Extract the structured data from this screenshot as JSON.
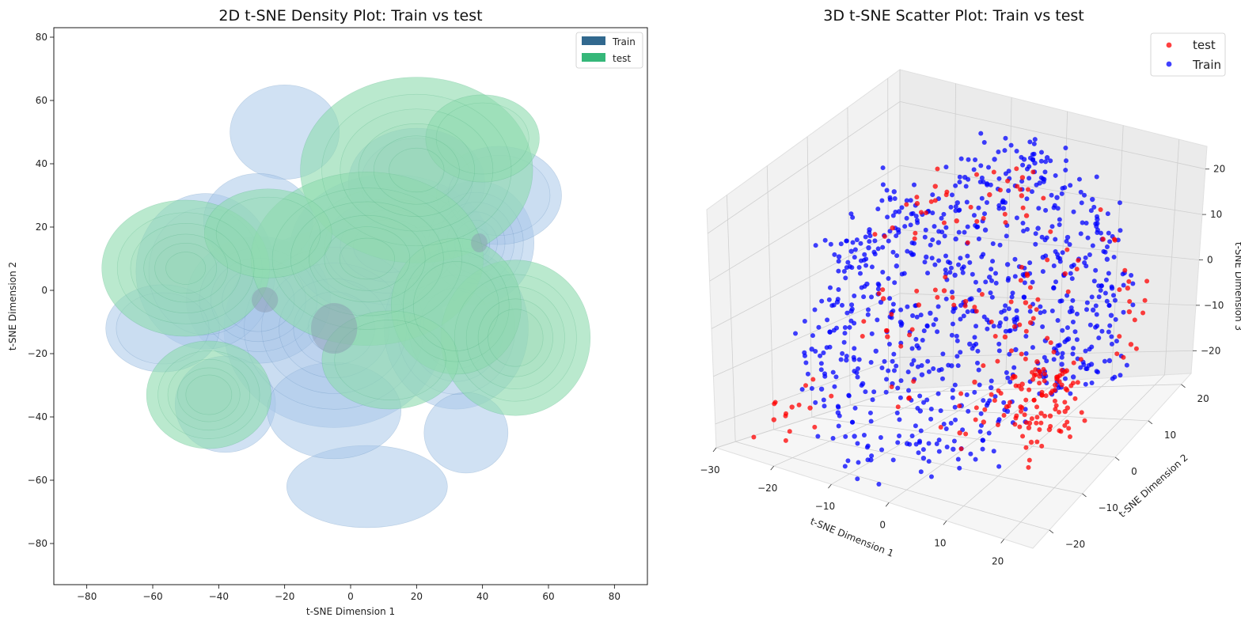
{
  "chart_data": [
    {
      "type": "density",
      "title": "2D t-SNE Density Plot: Train vs test",
      "xlabel": "t-SNE Dimension 1",
      "ylabel": "t-SNE Dimension 2",
      "xlim": [
        -90,
        90
      ],
      "ylim": [
        -93,
        83
      ],
      "xticks": [
        -80,
        -60,
        -40,
        -20,
        0,
        20,
        40,
        60,
        80
      ],
      "yticks": [
        -80,
        -60,
        -40,
        -20,
        0,
        20,
        40,
        60,
        80
      ],
      "xtick_labels": [
        "−80",
        "−60",
        "−40",
        "−20",
        "0",
        "20",
        "40",
        "60",
        "80"
      ],
      "ytick_labels": [
        "−80",
        "−60",
        "−40",
        "−20",
        "0",
        "20",
        "40",
        "60",
        "80"
      ],
      "legend": {
        "placement": "top-right",
        "entries": [
          {
            "name": "Train",
            "color": "#31688e"
          },
          {
            "name": "test",
            "color": "#35b779"
          }
        ]
      },
      "series": [
        {
          "name": "Train",
          "fill": "#a9c8ea",
          "line": "#4a7fb0",
          "clusters": [
            {
              "x": -5,
              "y": -12,
              "sx": 16,
              "sy": 15,
              "w": 1.0
            },
            {
              "x": -28,
              "y": -3,
              "sx": 12,
              "sy": 11,
              "w": 0.6
            },
            {
              "x": 12,
              "y": 14,
              "sx": 16,
              "sy": 12,
              "w": 0.7
            },
            {
              "x": 38,
              "y": 15,
              "sx": 9,
              "sy": 10,
              "w": 0.8
            },
            {
              "x": 20,
              "y": 34,
              "sx": 12,
              "sy": 10,
              "w": 0.45
            },
            {
              "x": 32,
              "y": -12,
              "sx": 12,
              "sy": 14,
              "w": 0.6
            },
            {
              "x": -44,
              "y": 6,
              "sx": 12,
              "sy": 14,
              "w": 0.5
            },
            {
              "x": -57,
              "y": -12,
              "sx": 10,
              "sy": 8,
              "w": 0.45
            },
            {
              "x": -20,
              "y": 50,
              "sx": 10,
              "sy": 9,
              "w": 0.35
            },
            {
              "x": 45,
              "y": 30,
              "sx": 11,
              "sy": 9,
              "w": 0.45
            },
            {
              "x": -38,
              "y": -36,
              "sx": 9,
              "sy": 9,
              "w": 0.4
            },
            {
              "x": 35,
              "y": -45,
              "sx": 8,
              "sy": 8,
              "w": 0.25
            },
            {
              "x": 5,
              "y": -62,
              "sx": 15,
              "sy": 8,
              "w": 0.3
            },
            {
              "x": -28,
              "y": 22,
              "sx": 10,
              "sy": 9,
              "w": 0.35
            },
            {
              "x": -5,
              "y": -38,
              "sx": 12,
              "sy": 9,
              "w": 0.4
            }
          ]
        },
        {
          "name": "test",
          "fill": "#8fdcb0",
          "line": "#3fa878",
          "clusters": [
            {
              "x": -50,
              "y": 7,
              "sx": 13,
              "sy": 11,
              "w": 0.8
            },
            {
              "x": -43,
              "y": -33,
              "sx": 10,
              "sy": 9,
              "w": 0.7
            },
            {
              "x": 20,
              "y": 38,
              "sx": 18,
              "sy": 15,
              "w": 0.8
            },
            {
              "x": 5,
              "y": 10,
              "sx": 18,
              "sy": 14,
              "w": 0.8
            },
            {
              "x": 50,
              "y": -15,
              "sx": 12,
              "sy": 13,
              "w": 0.7
            },
            {
              "x": 32,
              "y": -5,
              "sx": 11,
              "sy": 12,
              "w": 0.55
            },
            {
              "x": -25,
              "y": 18,
              "sx": 11,
              "sy": 8,
              "w": 0.5
            },
            {
              "x": 12,
              "y": -22,
              "sx": 12,
              "sy": 9,
              "w": 0.45
            },
            {
              "x": 40,
              "y": 48,
              "sx": 10,
              "sy": 8,
              "w": 0.45
            }
          ]
        }
      ]
    },
    {
      "type": "scatter3d",
      "title": "3D t-SNE Scatter Plot: Train vs test",
      "xlabel": "t-SNE Dimension 1",
      "ylabel": "t-SNE Dimension 2",
      "zlabel": "t-SNE Dimension 3",
      "xlim": [
        -30,
        25
      ],
      "ylim": [
        -25,
        23
      ],
      "zlim": [
        -25,
        25
      ],
      "xticks": [
        -30,
        -20,
        -10,
        0,
        10,
        20
      ],
      "yticks": [
        -20,
        -10,
        0,
        10,
        20
      ],
      "zticks": [
        -20,
        -10,
        0,
        10,
        20
      ],
      "xtick_labels": [
        "−30",
        "−20",
        "−10",
        "0",
        "10",
        "20"
      ],
      "ytick_labels": [
        "−20",
        "−10",
        "0",
        "10",
        "20"
      ],
      "ztick_labels": [
        "−20",
        "−10",
        "0",
        "10",
        "20"
      ],
      "legend": {
        "placement": "top-right",
        "entries": [
          {
            "name": "test",
            "color": "#ff0000"
          },
          {
            "name": "Train",
            "color": "#0000ff"
          }
        ]
      },
      "series": [
        {
          "name": "test",
          "color": "#ff0000",
          "points": [
            [
              18,
              -10,
              -6
            ],
            [
              19,
              -12,
              -8
            ],
            [
              17,
              -9,
              -3
            ],
            [
              20,
              -11,
              -9
            ],
            [
              16,
              -13,
              -7
            ],
            [
              21,
              -8,
              -5
            ],
            [
              18,
              -14,
              -10
            ],
            [
              19,
              -7,
              -4
            ],
            [
              22,
              -10,
              -8
            ],
            [
              15,
              -11,
              -5
            ],
            [
              17,
              -12,
              -11
            ],
            [
              20,
              -9,
              -2
            ],
            [
              14,
              -9,
              -6
            ],
            [
              21,
              -13,
              -10
            ],
            [
              16,
              -8,
              -1
            ],
            [
              19,
              -15,
              -12
            ],
            [
              18,
              -6,
              -7
            ],
            [
              23,
              -11,
              -6
            ],
            [
              13,
              -12,
              -9
            ],
            [
              20,
              -6,
              -3
            ],
            [
              12,
              -3,
              2
            ],
            [
              10,
              -1,
              4
            ],
            [
              14,
              4,
              8
            ],
            [
              8,
              3,
              6
            ],
            [
              5,
              8,
              14
            ],
            [
              3,
              10,
              16
            ],
            [
              2,
              12,
              18
            ],
            [
              -2,
              9,
              15
            ],
            [
              -6,
              6,
              10
            ],
            [
              -12,
              10,
              12
            ],
            [
              -14,
              8,
              9
            ],
            [
              -16,
              4,
              6
            ],
            [
              -13,
              -4,
              -2
            ],
            [
              -10,
              -8,
              -6
            ],
            [
              -22,
              -16,
              -20
            ],
            [
              -24,
              -18,
              -22
            ],
            [
              -20,
              -14,
              -21
            ],
            [
              4,
              -6,
              -12
            ],
            [
              6,
              -14,
              -16
            ],
            [
              -4,
              -12,
              -14
            ],
            [
              24,
              6,
              2
            ],
            [
              22,
              9,
              4
            ],
            [
              16,
              12,
              10
            ],
            [
              26,
              3,
              -2
            ],
            [
              9,
              -12,
              -14
            ],
            [
              -1,
              0,
              -1
            ],
            [
              -3,
              -3,
              3
            ],
            [
              7,
              -2,
              -4
            ],
            [
              11,
              -6,
              -8
            ],
            [
              -8,
              -2,
              -3
            ]
          ]
        },
        {
          "name": "Train",
          "color": "#0000ff",
          "points": [
            [
              -20,
              -8,
              -9
            ],
            [
              -18,
              -5,
              -6
            ],
            [
              -16,
              -10,
              -12
            ],
            [
              -14,
              -3,
              -4
            ],
            [
              -12,
              -8,
              -10
            ],
            [
              -10,
              -4,
              -6
            ],
            [
              -8,
              -10,
              -14
            ],
            [
              -6,
              -2,
              -4
            ],
            [
              -4,
              -8,
              -12
            ],
            [
              -2,
              -12,
              -16
            ],
            [
              0,
              -6,
              -10
            ],
            [
              2,
              -4,
              -6
            ],
            [
              4,
              -10,
              -14
            ],
            [
              6,
              -2,
              -2
            ],
            [
              8,
              -8,
              -10
            ],
            [
              10,
              -4,
              -4
            ],
            [
              12,
              -10,
              -12
            ],
            [
              14,
              -2,
              -2
            ],
            [
              16,
              -6,
              -6
            ],
            [
              18,
              -2,
              0
            ],
            [
              20,
              2,
              4
            ],
            [
              22,
              4,
              2
            ],
            [
              24,
              0,
              -4
            ],
            [
              21,
              6,
              6
            ],
            [
              19,
              8,
              10
            ],
            [
              17,
              10,
              12
            ],
            [
              15,
              12,
              14
            ],
            [
              13,
              14,
              16
            ],
            [
              11,
              10,
              10
            ],
            [
              9,
              6,
              8
            ],
            [
              7,
              8,
              12
            ],
            [
              5,
              12,
              18
            ],
            [
              3,
              14,
              20
            ],
            [
              1,
              8,
              14
            ],
            [
              -1,
              6,
              10
            ],
            [
              -3,
              10,
              16
            ],
            [
              -5,
              4,
              8
            ],
            [
              -7,
              8,
              12
            ],
            [
              -9,
              2,
              4
            ],
            [
              -11,
              6,
              10
            ],
            [
              -13,
              0,
              2
            ],
            [
              -15,
              4,
              6
            ],
            [
              -17,
              -2,
              -2
            ],
            [
              -19,
              2,
              2
            ],
            [
              -21,
              -4,
              -6
            ],
            [
              -23,
              0,
              0
            ],
            [
              -22,
              -10,
              -12
            ],
            [
              -18,
              -14,
              -16
            ],
            [
              -14,
              -16,
              -18
            ],
            [
              -10,
              -18,
              -20
            ],
            [
              -6,
              -20,
              -22
            ],
            [
              -2,
              -16,
              -20
            ],
            [
              2,
              -18,
              -20
            ],
            [
              6,
              -16,
              -18
            ],
            [
              10,
              -14,
              -16
            ],
            [
              0,
              0,
              0
            ],
            [
              2,
              2,
              4
            ],
            [
              -2,
              -2,
              -2
            ],
            [
              4,
              4,
              6
            ],
            [
              -4,
              2,
              2
            ],
            [
              6,
              0,
              -2
            ],
            [
              -6,
              -6,
              -8
            ],
            [
              8,
              2,
              2
            ],
            [
              -8,
              4,
              6
            ],
            [
              12,
              4,
              4
            ],
            [
              -12,
              -12,
              -14
            ],
            [
              14,
              6,
              8
            ],
            [
              -16,
              6,
              8
            ],
            [
              16,
              2,
              2
            ],
            [
              -18,
              8,
              10
            ],
            [
              18,
              -4,
              -4
            ],
            [
              20,
              -4,
              -6
            ],
            [
              -20,
              4,
              4
            ],
            [
              22,
              -2,
              -4
            ],
            [
              -22,
              2,
              0
            ],
            [
              0,
              16,
              18
            ],
            [
              -4,
              14,
              18
            ],
            [
              4,
              16,
              20
            ],
            [
              8,
              12,
              16
            ],
            [
              -8,
              12,
              14
            ]
          ]
        }
      ]
    }
  ]
}
